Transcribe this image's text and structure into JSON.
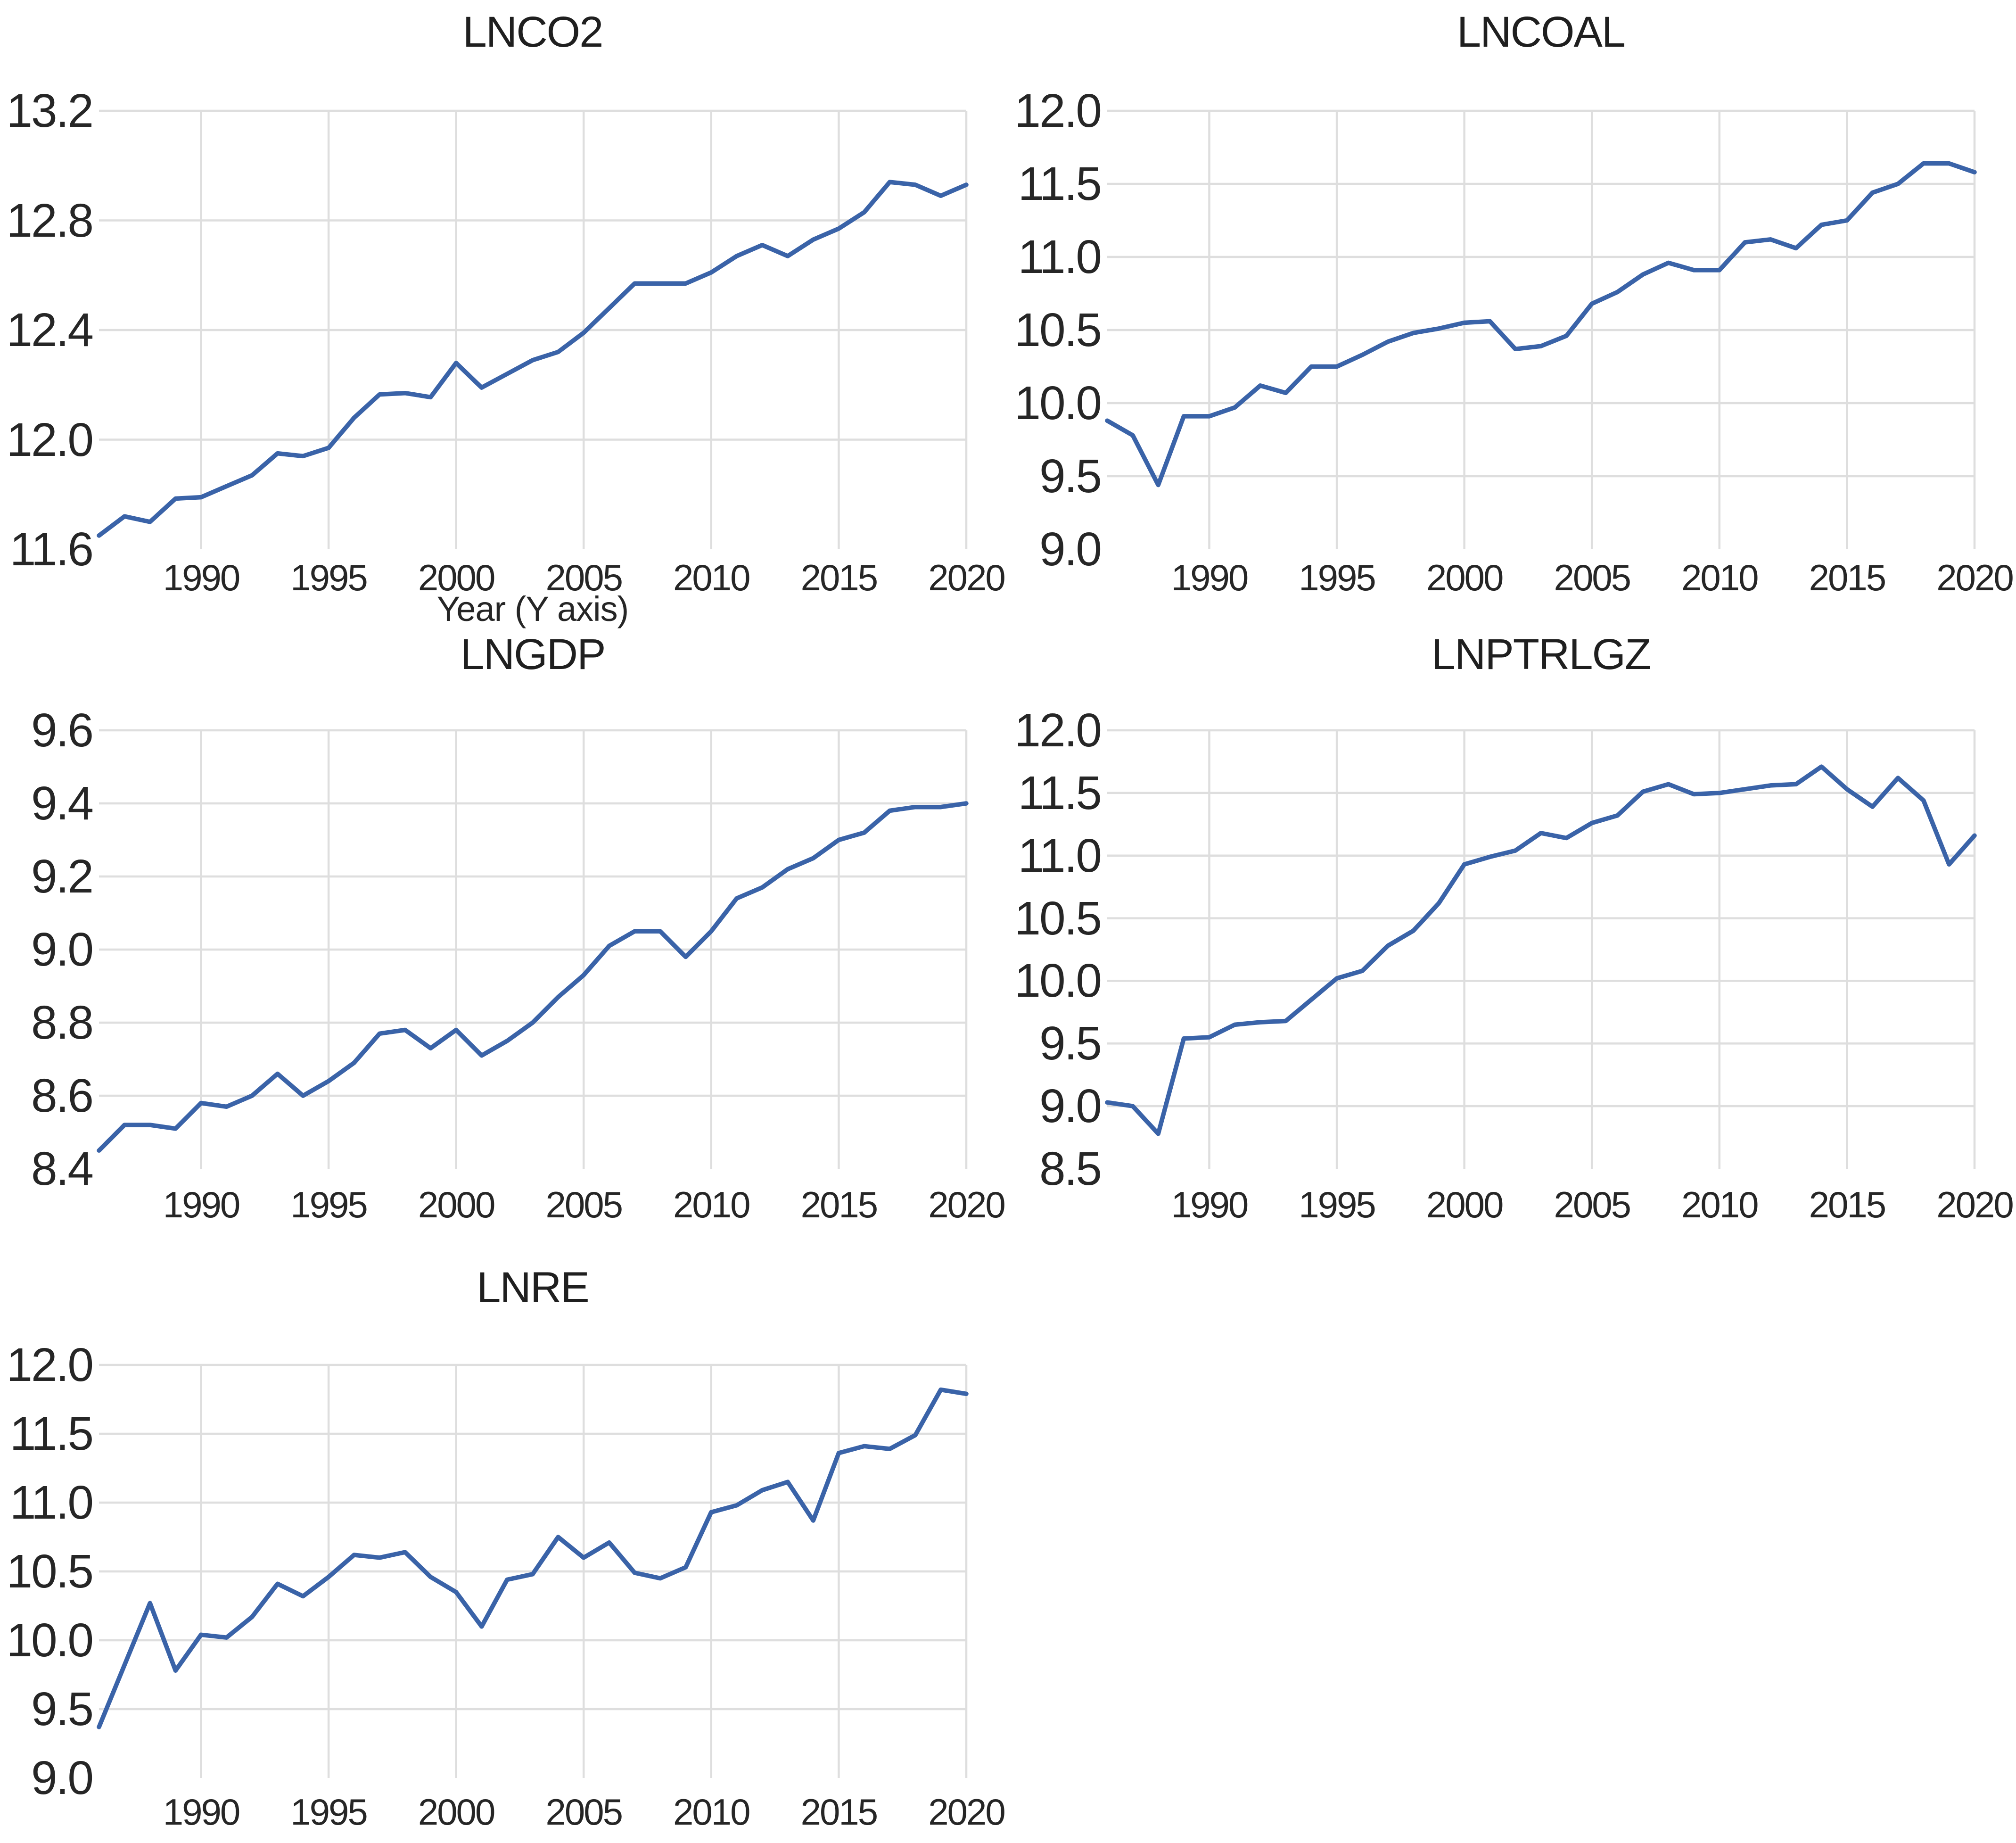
{
  "styles": {
    "background": "#ffffff",
    "line_color": "#3A63A8",
    "grid_color": "#DEDEDE",
    "tick_color": "#262626",
    "title_color": "#1f1f1f"
  },
  "chart_data": [
    {
      "type": "line",
      "title": "LNCO2",
      "xlabel": "Year (Y axis)",
      "legend": "none",
      "grid": true,
      "xlim": [
        1986,
        2020
      ],
      "xticks": [
        1990,
        1995,
        2000,
        2005,
        2010,
        2015,
        2020
      ],
      "ylim": [
        11.6,
        13.2
      ],
      "yticks": [
        13.2,
        12.8,
        12.4,
        12.0,
        11.6
      ],
      "x": [
        1986,
        1987,
        1988,
        1989,
        1990,
        1991,
        1992,
        1993,
        1994,
        1995,
        1996,
        1997,
        1998,
        1999,
        2000,
        2001,
        2002,
        2003,
        2004,
        2005,
        2006,
        2007,
        2008,
        2009,
        2010,
        2011,
        2012,
        2013,
        2014,
        2015,
        2016,
        2017,
        2018,
        2019,
        2020
      ],
      "values": [
        11.65,
        11.72,
        11.7,
        11.785,
        11.79,
        11.83,
        11.87,
        11.95,
        11.94,
        11.97,
        12.08,
        12.165,
        12.17,
        12.155,
        12.28,
        12.19,
        12.24,
        12.29,
        12.32,
        12.39,
        12.48,
        12.57,
        12.57,
        12.57,
        12.61,
        12.67,
        12.71,
        12.67,
        12.73,
        12.77,
        12.83,
        12.94,
        12.93,
        12.89,
        12.93
      ]
    },
    {
      "type": "line",
      "title": "LNCOAL",
      "xlabel": "",
      "legend": "none",
      "grid": true,
      "xlim": [
        1986,
        2020
      ],
      "xticks": [
        1990,
        1995,
        2000,
        2005,
        2010,
        2015,
        2020
      ],
      "ylim": [
        9.0,
        12.0
      ],
      "yticks": [
        12.0,
        11.5,
        11.0,
        10.5,
        10.0,
        9.5,
        9.0
      ],
      "x": [
        1986,
        1987,
        1988,
        1989,
        1990,
        1991,
        1992,
        1993,
        1994,
        1995,
        1996,
        1997,
        1998,
        1999,
        2000,
        2001,
        2002,
        2003,
        2004,
        2005,
        2006,
        2007,
        2008,
        2009,
        2010,
        2011,
        2012,
        2013,
        2014,
        2015,
        2016,
        2017,
        2018,
        2019,
        2020
      ],
      "values": [
        9.88,
        9.78,
        9.44,
        9.91,
        9.91,
        9.97,
        10.12,
        10.07,
        10.25,
        10.25,
        10.33,
        10.42,
        10.48,
        10.51,
        10.55,
        10.56,
        10.37,
        10.39,
        10.46,
        10.68,
        10.76,
        10.88,
        10.96,
        10.91,
        10.91,
        11.1,
        11.12,
        11.06,
        11.22,
        11.25,
        11.44,
        11.5,
        11.64,
        11.64,
        11.58
      ]
    },
    {
      "type": "line",
      "title": "LNGDP",
      "xlabel": "",
      "legend": "none",
      "grid": true,
      "xlim": [
        1986,
        2020
      ],
      "xticks": [
        1990,
        1995,
        2000,
        2005,
        2010,
        2015,
        2020
      ],
      "ylim": [
        8.4,
        9.6
      ],
      "yticks": [
        9.6,
        9.4,
        9.2,
        9.0,
        8.8,
        8.6,
        8.4
      ],
      "x": [
        1986,
        1987,
        1988,
        1989,
        1990,
        1991,
        1992,
        1993,
        1994,
        1995,
        1996,
        1997,
        1998,
        1999,
        2000,
        2001,
        2002,
        2003,
        2004,
        2005,
        2006,
        2007,
        2008,
        2009,
        2010,
        2011,
        2012,
        2013,
        2014,
        2015,
        2016,
        2017,
        2018,
        2019,
        2020
      ],
      "values": [
        8.45,
        8.52,
        8.52,
        8.51,
        8.58,
        8.57,
        8.6,
        8.66,
        8.6,
        8.64,
        8.69,
        8.77,
        8.78,
        8.73,
        8.78,
        8.71,
        8.75,
        8.8,
        8.87,
        8.93,
        9.01,
        9.05,
        9.05,
        8.98,
        9.05,
        9.14,
        9.17,
        9.22,
        9.25,
        9.3,
        9.32,
        9.38,
        9.39,
        9.39,
        9.4
      ]
    },
    {
      "type": "line",
      "title": "LNPTRLGZ",
      "xlabel": "",
      "legend": "none",
      "grid": true,
      "xlim": [
        1986,
        2020
      ],
      "xticks": [
        1990,
        1995,
        2000,
        2005,
        2010,
        2015,
        2020
      ],
      "ylim": [
        8.5,
        12.0
      ],
      "yticks": [
        12.0,
        11.5,
        11.0,
        10.5,
        10.0,
        9.5,
        9.0,
        8.5
      ],
      "x": [
        1986,
        1987,
        1988,
        1989,
        1990,
        1991,
        1992,
        1993,
        1994,
        1995,
        1996,
        1997,
        1998,
        1999,
        2000,
        2001,
        2002,
        2003,
        2004,
        2005,
        2006,
        2007,
        2008,
        2009,
        2010,
        2011,
        2012,
        2013,
        2014,
        2015,
        2016,
        2017,
        2018,
        2019,
        2020
      ],
      "values": [
        9.03,
        9.0,
        8.78,
        9.54,
        9.55,
        9.65,
        9.67,
        9.68,
        9.85,
        10.02,
        10.08,
        10.28,
        10.4,
        10.62,
        10.93,
        10.99,
        11.04,
        11.18,
        11.14,
        11.26,
        11.32,
        11.51,
        11.57,
        11.49,
        11.5,
        11.53,
        11.56,
        11.57,
        11.71,
        11.53,
        11.39,
        11.62,
        11.44,
        10.93,
        11.16
      ]
    },
    {
      "type": "line",
      "title": "LNRE",
      "xlabel": "",
      "legend": "none",
      "grid": true,
      "xlim": [
        1986,
        2020
      ],
      "xticks": [
        1990,
        1995,
        2000,
        2005,
        2010,
        2015,
        2020
      ],
      "ylim": [
        9.0,
        12.0
      ],
      "yticks": [
        12.0,
        11.5,
        11.0,
        10.5,
        10.0,
        9.5,
        9.0
      ],
      "x": [
        1986,
        1987,
        1988,
        1989,
        1990,
        1991,
        1992,
        1993,
        1994,
        1995,
        1996,
        1997,
        1998,
        1999,
        2000,
        2001,
        2002,
        2003,
        2004,
        2005,
        2006,
        2007,
        2008,
        2009,
        2010,
        2011,
        2012,
        2013,
        2014,
        2015,
        2016,
        2017,
        2018,
        2019,
        2020
      ],
      "values": [
        9.37,
        9.82,
        10.27,
        9.78,
        10.04,
        10.02,
        10.17,
        10.41,
        10.32,
        10.46,
        10.62,
        10.6,
        10.64,
        10.46,
        10.35,
        10.1,
        10.44,
        10.48,
        10.75,
        10.6,
        10.71,
        10.49,
        10.45,
        10.53,
        10.93,
        10.98,
        11.09,
        11.15,
        10.87,
        11.36,
        11.41,
        11.39,
        11.49,
        11.82,
        11.79
      ]
    }
  ]
}
